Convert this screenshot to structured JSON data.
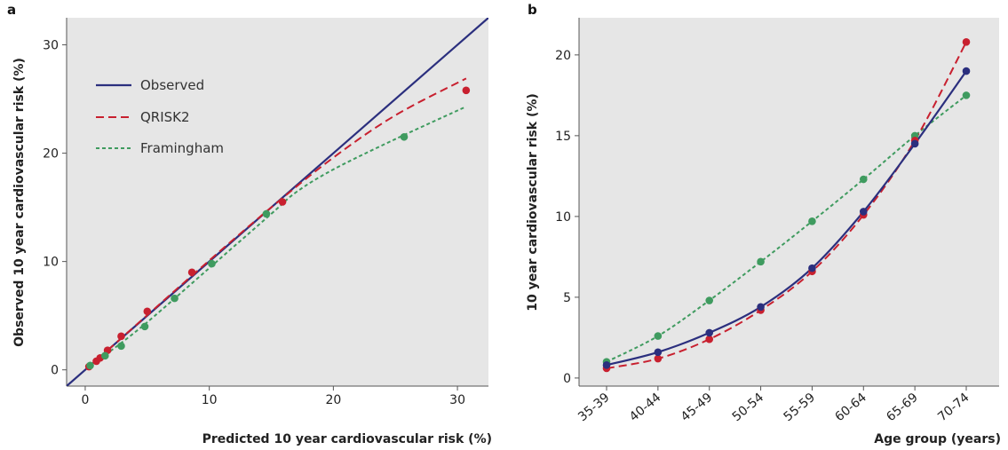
{
  "colors": {
    "observed": "#2b2f7e",
    "qrisk2": "#c8202f",
    "framingham": "#3f9b5f",
    "panel_background": "#e6e6e6"
  },
  "chart_data": [
    {
      "panel_label": "a",
      "type": "line",
      "xlabel": "Predicted 10 year cardiovascular risk (%)",
      "ylabel": "Observed 10 year cardiovascular risk (%)",
      "xlim": [
        -1.5,
        32.5
      ],
      "ylim": [
        -1.5,
        32.5
      ],
      "xticks": [
        0,
        10,
        20,
        30
      ],
      "yticks": [
        0,
        10,
        20,
        30
      ],
      "xtick_labels": [
        "0",
        "10",
        "20",
        "30"
      ],
      "ytick_labels": [
        "0",
        "10",
        "20",
        "30"
      ],
      "legend": {
        "placement": "top-left",
        "entries": [
          "Observed",
          "QRISK2",
          "Framingham"
        ]
      },
      "series": [
        {
          "name": "Observed",
          "style": "solid",
          "x": [
            -1.5,
            32.5
          ],
          "y": [
            -1.5,
            32.5
          ]
        },
        {
          "name": "QRISK2",
          "style": "dashed",
          "x": [
            0.3,
            0.9,
            1.2,
            1.8,
            2.9,
            5.0,
            8.6,
            15.9,
            30.7
          ],
          "y": [
            0.3,
            0.8,
            1.1,
            1.8,
            3.1,
            5.4,
            9.0,
            15.5,
            25.8
          ],
          "fit_x": [
            0.3,
            2.0,
            5.0,
            10.0,
            15.0,
            20.0,
            25.0,
            30.7
          ],
          "fit_y": [
            0.3,
            2.0,
            5.05,
            10.1,
            15.0,
            19.6,
            23.5,
            26.9
          ]
        },
        {
          "name": "Framingham",
          "style": "dotted",
          "x": [
            0.4,
            1.6,
            2.9,
            4.8,
            7.2,
            10.2,
            14.6,
            25.7
          ],
          "y": [
            0.4,
            1.3,
            2.2,
            4.0,
            6.6,
            9.8,
            14.4,
            21.5
          ],
          "fit_x": [
            0.4,
            2.0,
            5.0,
            10.0,
            15.0,
            17.0,
            20.0,
            25.0,
            30.7
          ],
          "fit_y": [
            0.4,
            1.7,
            4.4,
            9.4,
            14.4,
            16.4,
            18.5,
            21.3,
            24.3
          ]
        }
      ]
    },
    {
      "panel_label": "b",
      "type": "line",
      "xlabel": "Age group (years)",
      "ylabel": "10 year cardiovascular risk (%)",
      "categories": [
        "35-39",
        "40-44",
        "45-49",
        "50-54",
        "55-59",
        "60-64",
        "65-69",
        "70-74"
      ],
      "ylim": [
        -0.5,
        22.3
      ],
      "yticks": [
        0,
        5,
        10,
        15,
        20
      ],
      "ytick_labels": [
        "0",
        "5",
        "10",
        "15",
        "20"
      ],
      "series": [
        {
          "name": "Observed",
          "style": "solid",
          "values": [
            0.8,
            1.6,
            2.8,
            4.4,
            6.8,
            10.3,
            14.5,
            19.0
          ]
        },
        {
          "name": "QRISK2",
          "style": "dashed",
          "values": [
            0.6,
            1.2,
            2.4,
            4.2,
            6.6,
            10.1,
            14.7,
            20.8
          ]
        },
        {
          "name": "Framingham",
          "style": "dotted",
          "values": [
            1.0,
            2.6,
            4.8,
            7.2,
            9.7,
            12.3,
            15.0,
            17.5
          ]
        }
      ]
    }
  ]
}
